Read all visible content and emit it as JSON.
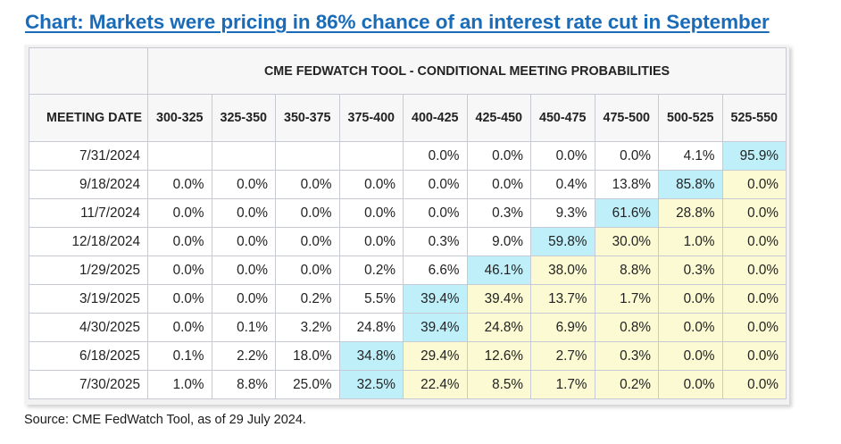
{
  "title": "Chart: Markets were pricing in 86% chance of an interest rate cut in September",
  "table": {
    "caption": "CME FEDWATCH TOOL - CONDITIONAL MEETING PROBABILITIES",
    "date_header": "MEETING DATE",
    "columns": [
      "300-325",
      "325-350",
      "350-375",
      "375-400",
      "400-425",
      "425-450",
      "450-475",
      "475-500",
      "500-525",
      "525-550"
    ],
    "rows": [
      {
        "date": "7/31/2024",
        "values": [
          "",
          "",
          "",
          "",
          "0.0%",
          "0.0%",
          "0.0%",
          "0.0%",
          "4.1%",
          "95.9%"
        ],
        "highlight": 9,
        "shade_from": 10
      },
      {
        "date": "9/18/2024",
        "values": [
          "0.0%",
          "0.0%",
          "0.0%",
          "0.0%",
          "0.0%",
          "0.0%",
          "0.4%",
          "13.8%",
          "85.8%",
          "0.0%"
        ],
        "highlight": 8,
        "shade_from": 9
      },
      {
        "date": "11/7/2024",
        "values": [
          "0.0%",
          "0.0%",
          "0.0%",
          "0.0%",
          "0.0%",
          "0.3%",
          "9.3%",
          "61.6%",
          "28.8%",
          "0.0%"
        ],
        "highlight": 7,
        "shade_from": 8
      },
      {
        "date": "12/18/2024",
        "values": [
          "0.0%",
          "0.0%",
          "0.0%",
          "0.0%",
          "0.3%",
          "9.0%",
          "59.8%",
          "30.0%",
          "1.0%",
          "0.0%"
        ],
        "highlight": 6,
        "shade_from": 7
      },
      {
        "date": "1/29/2025",
        "values": [
          "0.0%",
          "0.0%",
          "0.0%",
          "0.2%",
          "6.6%",
          "46.1%",
          "38.0%",
          "8.8%",
          "0.3%",
          "0.0%"
        ],
        "highlight": 5,
        "shade_from": 6
      },
      {
        "date": "3/19/2025",
        "values": [
          "0.0%",
          "0.0%",
          "0.2%",
          "5.5%",
          "39.4%",
          "39.4%",
          "13.7%",
          "1.7%",
          "0.0%",
          "0.0%"
        ],
        "highlight": 4,
        "shade_from": 5
      },
      {
        "date": "4/30/2025",
        "values": [
          "0.0%",
          "0.1%",
          "3.2%",
          "24.8%",
          "39.4%",
          "24.8%",
          "6.9%",
          "0.8%",
          "0.0%",
          "0.0%"
        ],
        "highlight": 4,
        "shade_from": 5
      },
      {
        "date": "6/18/2025",
        "values": [
          "0.1%",
          "2.2%",
          "18.0%",
          "34.8%",
          "29.4%",
          "12.6%",
          "2.7%",
          "0.3%",
          "0.0%",
          "0.0%"
        ],
        "highlight": 3,
        "shade_from": 4
      },
      {
        "date": "7/30/2025",
        "values": [
          "1.0%",
          "8.8%",
          "25.0%",
          "32.5%",
          "22.4%",
          "8.5%",
          "1.7%",
          "0.2%",
          "0.0%",
          "0.0%"
        ],
        "highlight": 3,
        "shade_from": 4
      }
    ],
    "colors": {
      "highlight": "#bff0fa",
      "shaded": "#fbfad3"
    }
  },
  "source": "Source: CME FedWatch Tool, as of 29 July 2024."
}
